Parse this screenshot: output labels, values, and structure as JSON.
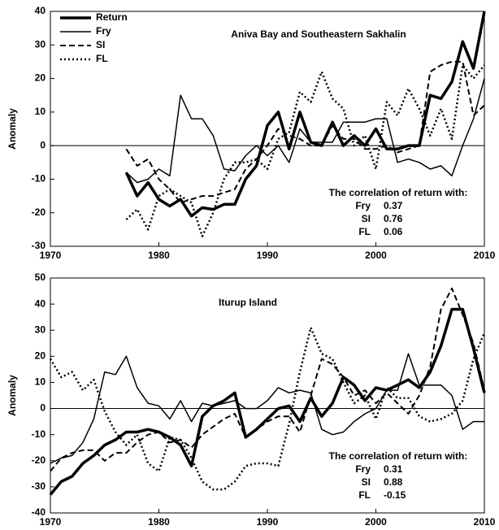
{
  "chart_data": [
    {
      "type": "line",
      "title": "Aniva Bay and Southeastern Sakhalin",
      "ylabel": "Anomaly",
      "x": [
        1977,
        1978,
        1979,
        1980,
        1981,
        1982,
        1983,
        1984,
        1985,
        1986,
        1987,
        1988,
        1989,
        1990,
        1991,
        1992,
        1993,
        1994,
        1995,
        1996,
        1997,
        1998,
        1999,
        2000,
        2001,
        2002,
        2003,
        2004,
        2005,
        2006,
        2007,
        2008,
        2009,
        2010
      ],
      "series": [
        {
          "name": "Return",
          "color": "#000000",
          "style": "thick",
          "values": [
            -8,
            -15,
            -11,
            -16,
            -18,
            -16,
            -21,
            -18.5,
            -19,
            -17.5,
            -17.5,
            -10,
            -6,
            6,
            10,
            -1,
            10,
            1,
            0,
            7,
            0,
            3,
            0,
            5,
            -1,
            -1,
            0,
            0,
            15,
            14,
            19,
            31,
            23,
            40
          ]
        },
        {
          "name": "Fry",
          "color": "#000000",
          "style": "thin",
          "values": [
            -8,
            -11,
            -10,
            -7,
            -9,
            15,
            8,
            8,
            3,
            -7,
            -7.5,
            -3,
            0,
            -3,
            0,
            -5,
            5,
            1,
            1,
            1,
            7,
            7,
            7,
            8,
            8,
            -5,
            -4,
            -5,
            -7,
            -6,
            -9,
            0,
            8,
            20
          ]
        },
        {
          "name": "SI",
          "color": "#000000",
          "style": "dashed",
          "values": [
            -1,
            -6,
            -4,
            -10,
            -13,
            -17,
            -16,
            -15,
            -15,
            -14,
            -13,
            -7,
            -4,
            0,
            5,
            3,
            2,
            0,
            0,
            6,
            2,
            2,
            -1,
            -1,
            0,
            -2,
            -1,
            0,
            22,
            24,
            25,
            25,
            9,
            12
          ]
        },
        {
          "name": "FL",
          "color": "#000000",
          "style": "dotted",
          "values": [
            -22,
            -19,
            -25,
            -15,
            -13,
            -15,
            -17,
            -27,
            -20,
            -10,
            -5,
            -5,
            -4,
            -7,
            2,
            4,
            16,
            13,
            22,
            14,
            11,
            0,
            3,
            -7,
            13,
            9,
            17,
            11,
            3,
            11,
            2,
            24,
            20,
            24
          ]
        }
      ],
      "xlim": [
        1970,
        2010
      ],
      "xticks": [
        1970,
        1980,
        1990,
        2000,
        2010
      ],
      "ylim": [
        -30,
        40
      ],
      "yticks": [
        -30,
        -20,
        -10,
        0,
        10,
        20,
        30,
        40
      ],
      "zero_line": true,
      "legend": "upper left",
      "correlation": {
        "heading": "The correlation of return with:",
        "rows": [
          [
            "Fry",
            0.37
          ],
          [
            "SI",
            0.76
          ],
          [
            "FL",
            0.06
          ]
        ]
      }
    },
    {
      "type": "line",
      "title": "Iturup Island",
      "ylabel": "Anomaly",
      "x": [
        1970,
        1971,
        1972,
        1973,
        1974,
        1975,
        1976,
        1977,
        1978,
        1979,
        1980,
        1981,
        1982,
        1983,
        1984,
        1985,
        1986,
        1987,
        1988,
        1989,
        1990,
        1991,
        1992,
        1993,
        1994,
        1995,
        1996,
        1997,
        1998,
        1999,
        2000,
        2001,
        2002,
        2003,
        2004,
        2005,
        2006,
        2007,
        2008,
        2009,
        2010
      ],
      "series": [
        {
          "color": "#000000",
          "style": "thick",
          "values": [
            -33,
            -28,
            -26,
            -21,
            -18,
            -14,
            -12,
            -9,
            -9,
            -8,
            -9,
            -11,
            -14,
            -22,
            -3,
            1,
            3,
            6,
            -11,
            -8,
            -4,
            0,
            1,
            -5,
            4,
            -3,
            2,
            12,
            9,
            3,
            8,
            7,
            9,
            11,
            8,
            14,
            24,
            38,
            38,
            23,
            6
          ]
        },
        {
          "color": "#000000",
          "style": "thin",
          "values": [
            -21,
            -19,
            -18,
            -13,
            -4,
            14,
            13,
            20,
            8,
            2,
            1,
            -4,
            3,
            -5,
            2,
            1,
            2,
            3,
            0,
            0,
            3,
            8,
            6,
            7,
            6,
            -8,
            -10,
            -9,
            -5,
            -2,
            0,
            7,
            7,
            21,
            9,
            9,
            9,
            5,
            -8,
            -5,
            -5
          ]
        },
        {
          "color": "#000000",
          "style": "dashed",
          "values": [
            -24,
            -19,
            -17,
            -16,
            -16,
            -20,
            -17,
            -17,
            -13,
            -10,
            -9,
            -13,
            -12,
            -15,
            -10,
            -7,
            -4,
            -2,
            -11,
            -8,
            -5,
            -3,
            -3,
            -9,
            5,
            19,
            17,
            12,
            5,
            7,
            2,
            6,
            2,
            -2,
            5,
            16,
            38,
            46,
            36,
            25,
            7
          ]
        },
        {
          "color": "#000000",
          "style": "dotted",
          "values": [
            19,
            12,
            14,
            7,
            11,
            -1,
            -9,
            -14,
            -10,
            -21,
            -24,
            -11,
            -12,
            -19,
            -28,
            -31,
            -31,
            -28,
            -22,
            -21,
            -21,
            -22,
            -6,
            14,
            31,
            21,
            19,
            10,
            2,
            5,
            -4,
            8,
            4,
            4,
            -3,
            -5,
            -4,
            -2,
            3,
            19,
            29
          ]
        }
      ],
      "xlim": [
        1970,
        2010
      ],
      "xticks": [
        1970,
        1980,
        1990,
        2000,
        2010
      ],
      "ylim": [
        -40,
        50
      ],
      "yticks": [
        -40,
        -30,
        -20,
        -10,
        0,
        10,
        20,
        30,
        40,
        50
      ],
      "zero_line": true,
      "correlation": {
        "heading": "The correlation of return with:",
        "rows": [
          [
            "Fry",
            0.31
          ],
          [
            "SI",
            0.88
          ],
          [
            "FL",
            -0.15
          ]
        ]
      }
    }
  ]
}
